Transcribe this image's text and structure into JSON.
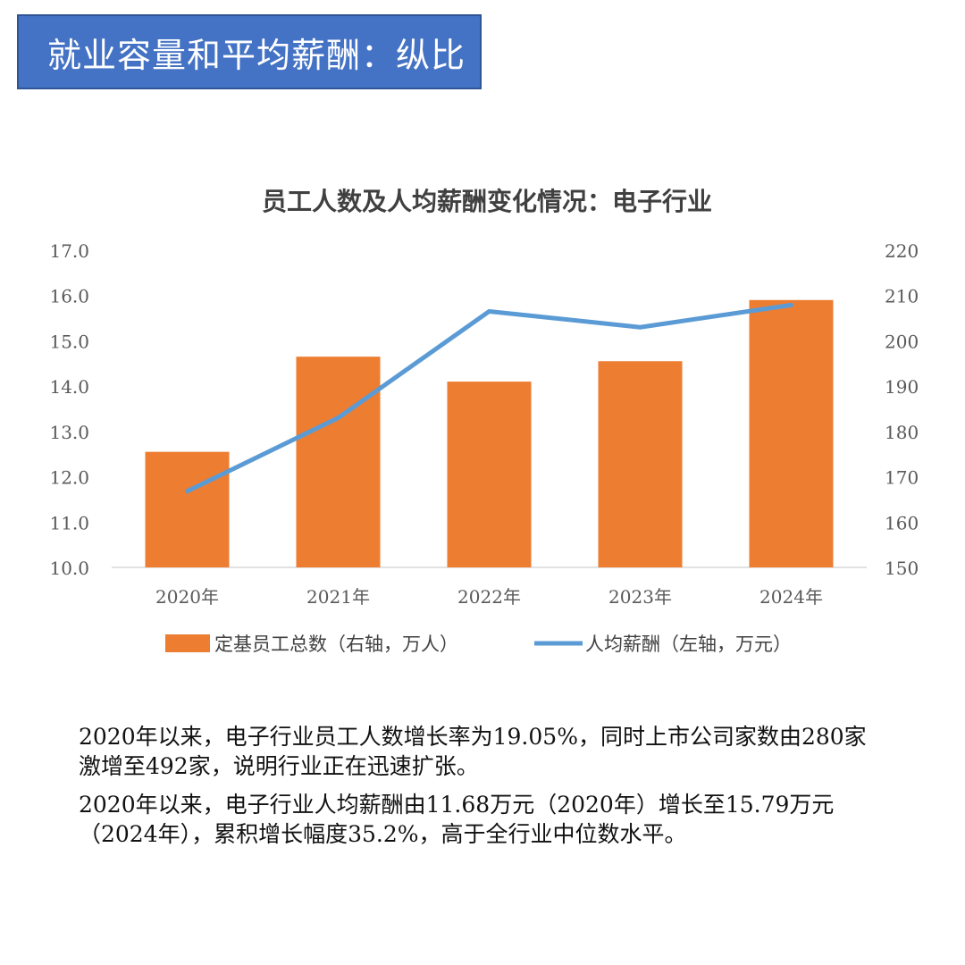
{
  "header": {
    "title": "就业容量和平均薪酬：纵比"
  },
  "colors": {
    "header_bg": "#4472C4",
    "bar": "#ED7D31",
    "line": "#5B9BD5",
    "axis_text": "#595959",
    "baseline": "#D9D9D9"
  },
  "chart_data": {
    "type": "bar",
    "title": "员工人数及人均薪酬变化情况：电子行业",
    "categories": [
      "2020年",
      "2021年",
      "2022年",
      "2023年",
      "2024年"
    ],
    "series": [
      {
        "name": "定基员工总数（右轴，万人）",
        "kind": "bar",
        "axis": "right",
        "values": [
          175.5,
          196.5,
          191,
          195.5,
          209
        ]
      },
      {
        "name": "人均薪酬（左轴，万元）",
        "kind": "line",
        "axis": "left",
        "values": [
          11.68,
          13.3,
          15.65,
          15.3,
          15.79
        ]
      }
    ],
    "ylim_left": [
      10,
      17
    ],
    "yticks_left": [
      "10.0",
      "11.0",
      "12.0",
      "13.0",
      "14.0",
      "15.0",
      "16.0",
      "17.0"
    ],
    "ylim_right": [
      150,
      220
    ],
    "yticks_right": [
      "150",
      "160",
      "170",
      "180",
      "190",
      "200",
      "210",
      "220"
    ],
    "legend_position": "bottom"
  },
  "text": {
    "p1": "2020年以来，电子行业员工人数增长率为19.05%，同时上市公司家数由280家激增至492家，说明行业正在迅速扩张。",
    "p2": "2020年以来，电子行业人均薪酬由11.68万元（2020年）增长至15.79万元（2024年），累积增长幅度35.2%，高于全行业中位数水平。"
  }
}
